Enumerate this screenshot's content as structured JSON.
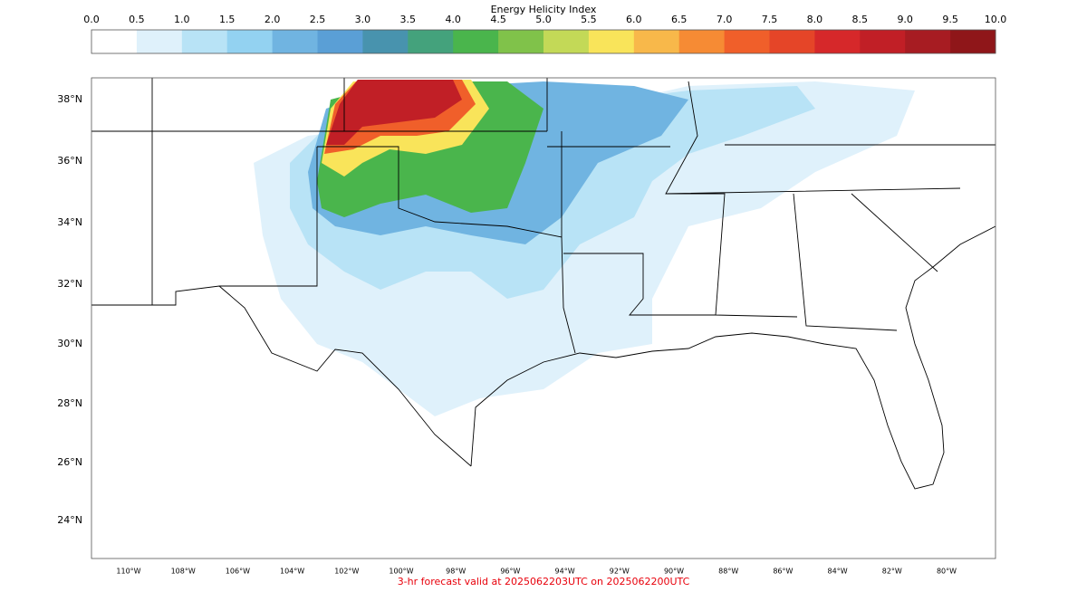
{
  "colorbar": {
    "title": "Energy Helicity Index",
    "ticks": [
      "0.0",
      "0.5",
      "1.0",
      "1.5",
      "2.0",
      "2.5",
      "3.0",
      "3.5",
      "4.0",
      "4.5",
      "5.0",
      "5.5",
      "6.0",
      "6.5",
      "7.0",
      "7.5",
      "8.0",
      "8.5",
      "9.0",
      "9.5",
      "10.0"
    ],
    "colors": [
      "#ffffff",
      "#dff1fb",
      "#b8e3f6",
      "#93d2f1",
      "#70b4e1",
      "#5a9fd6",
      "#4893ae",
      "#44a27c",
      "#4ab54c",
      "#80c24a",
      "#c3d957",
      "#f9e45a",
      "#f8b84a",
      "#f68b34",
      "#f05f2a",
      "#e54528",
      "#d6282a",
      "#c11f26",
      "#a71c22",
      "#8f1619"
    ]
  },
  "map": {
    "lat_labels": [
      "38°N",
      "36°N",
      "34°N",
      "32°N",
      "30°N",
      "28°N",
      "26°N",
      "24°N"
    ],
    "lon_labels": [
      "110°W",
      "108°W",
      "106°W",
      "104°W",
      "102°W",
      "100°W",
      "98°W",
      "96°W",
      "94°W",
      "92°W",
      "90°W",
      "88°W",
      "86°W",
      "84°W",
      "82°W",
      "80°W"
    ]
  },
  "footer": "3-hr forecast valid at 2025062203UTC on 2025062200UTC"
}
